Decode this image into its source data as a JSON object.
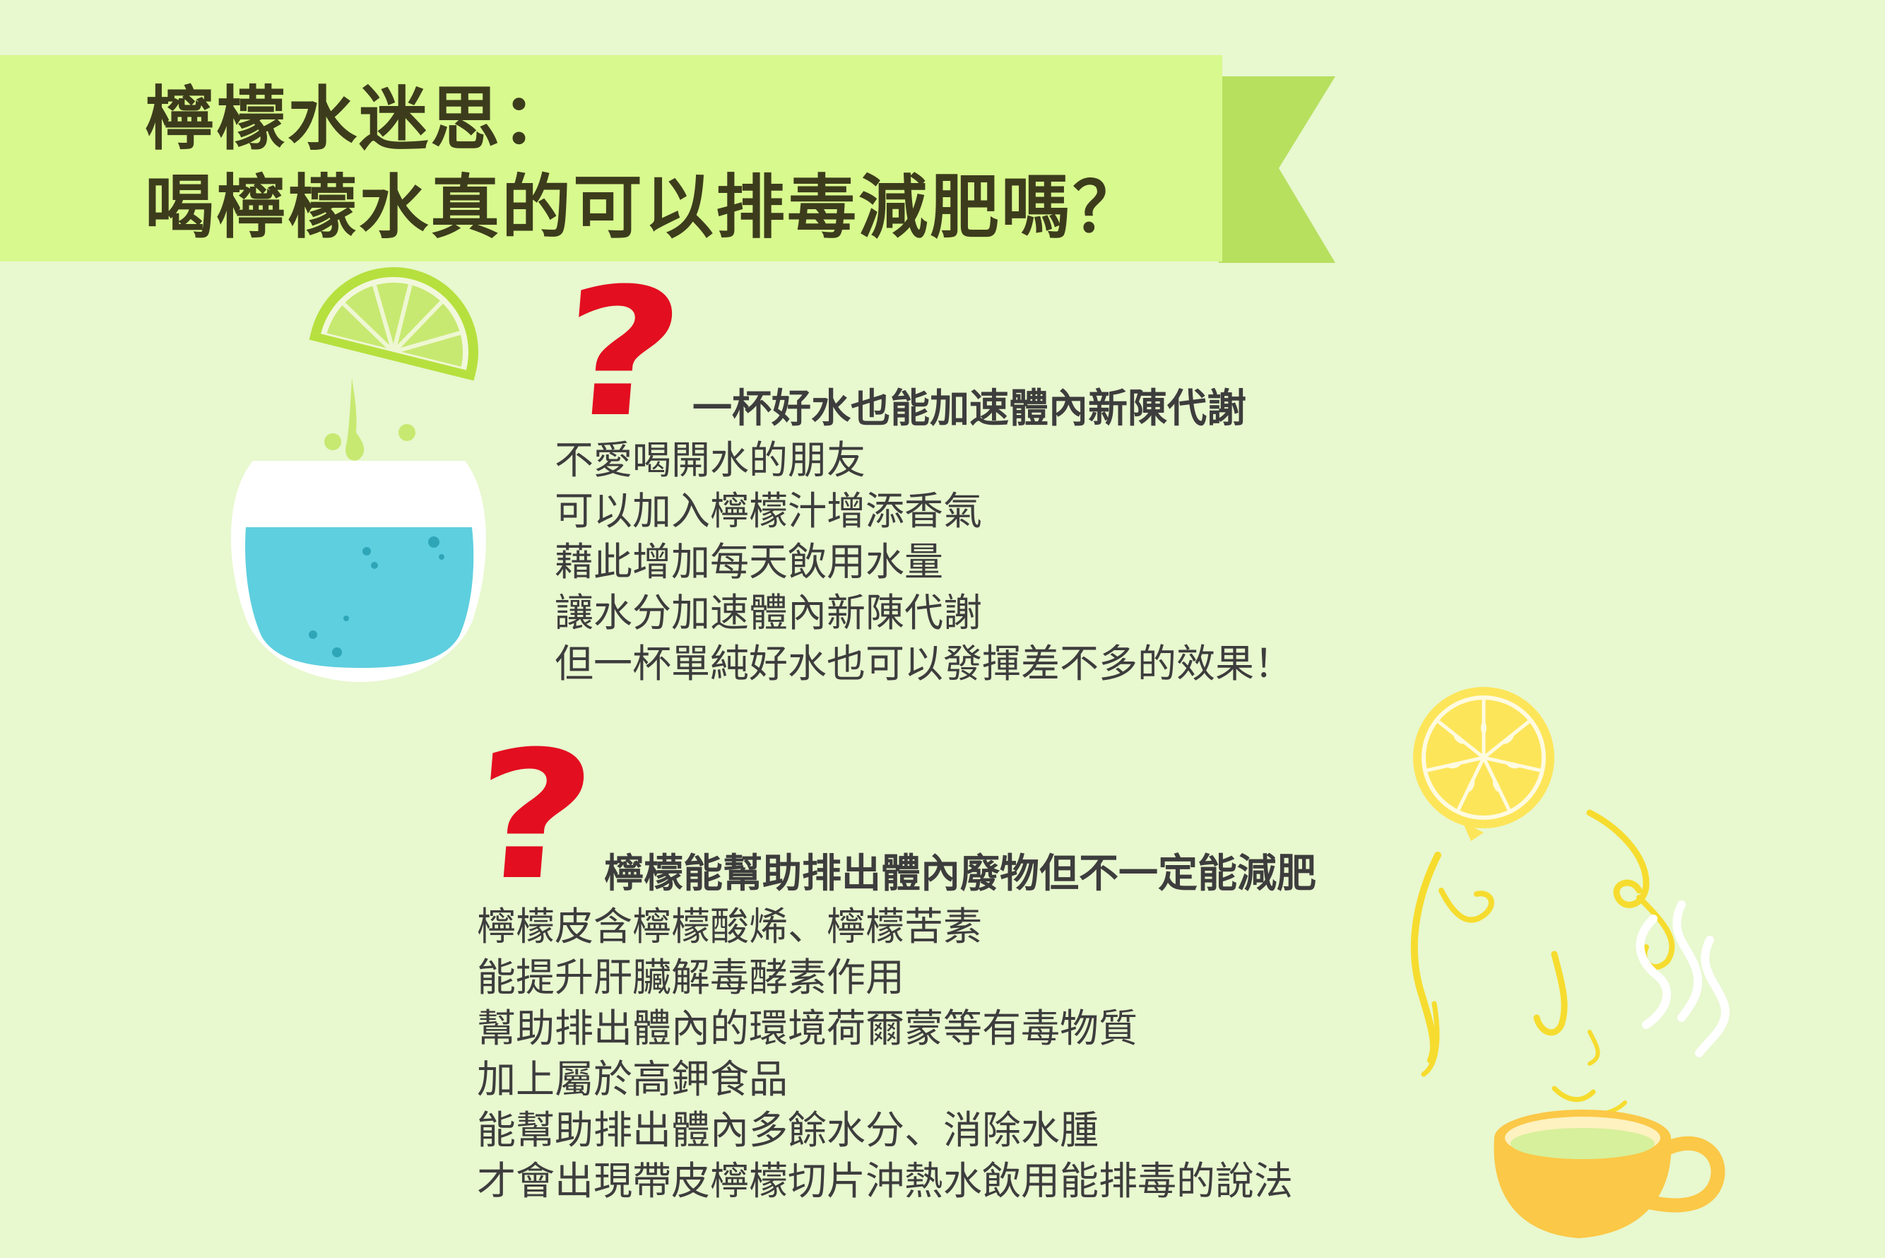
{
  "title": {
    "line1": "檸檬水迷思：",
    "line2": "喝檸檬水真的可以排毒減肥嗎？"
  },
  "colors": {
    "background": "#e8f8cf",
    "banner": "#d8f98e",
    "banner_tail": "#b7e05f",
    "title_text": "#3c3c1c",
    "question_mark": "#e30e20",
    "body_text": "#3d3d3d",
    "water": "#5ecfdf",
    "lime": "#c7e971",
    "lemon": "#fde55a",
    "cup": "#fbc847"
  },
  "icons": {
    "lime_glass": "lime-water-glass-icon",
    "question": "question-mark-icon",
    "lemon_tea": "lemon-tea-cup-icon"
  },
  "sections": [
    {
      "question_mark": "?",
      "heading": "一杯好水也能加速體內新陳代謝",
      "lines": [
        "不愛喝開水的朋友",
        "可以加入檸檬汁增添香氣",
        "藉此增加每天飲用水量",
        "讓水分加速體內新陳代謝",
        "但一杯單純好水也可以發揮差不多的效果！"
      ]
    },
    {
      "question_mark": "?",
      "heading": "檸檬能幫助排出體內廢物但不一定能減肥",
      "lines": [
        "檸檬皮含檸檬酸烯、檸檬苦素",
        "能提升肝臟解毒酵素作用",
        "幫助排出體內的環境荷爾蒙等有毒物質",
        "加上屬於高鉀食品",
        "能幫助排出體內多餘水分、消除水腫",
        "才會出現帶皮檸檬切片沖熱水飲用能排毒的說法"
      ]
    }
  ]
}
